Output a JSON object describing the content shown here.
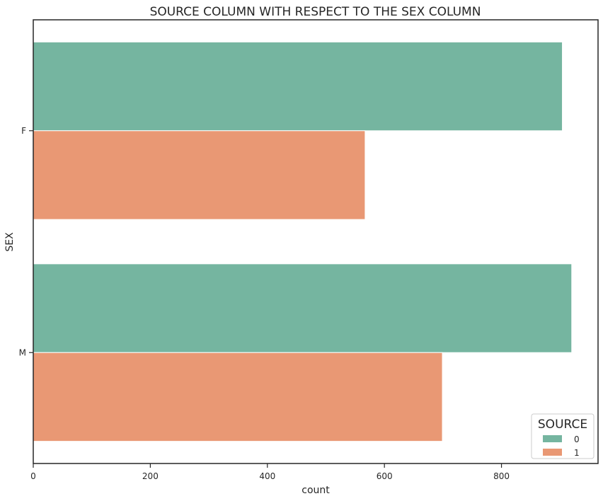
{
  "chart_data": {
    "type": "bar",
    "orientation": "horizontal",
    "title": "SOURCE COLUMN WITH RESPECT TO THE SEX COLUMN",
    "xlabel": "count",
    "ylabel": "SEX",
    "categories": [
      "F",
      "M"
    ],
    "series": [
      {
        "name": "0",
        "values": [
          904,
          920
        ],
        "color": "#75b5a0"
      },
      {
        "name": "1",
        "values": [
          567,
          699
        ],
        "color": "#e99874"
      }
    ],
    "xlim": [
      0,
      965
    ],
    "xticks": [
      0,
      200,
      400,
      600,
      800
    ],
    "legend": {
      "title": "SOURCE",
      "placement": "bottom-right"
    },
    "grid": false
  }
}
